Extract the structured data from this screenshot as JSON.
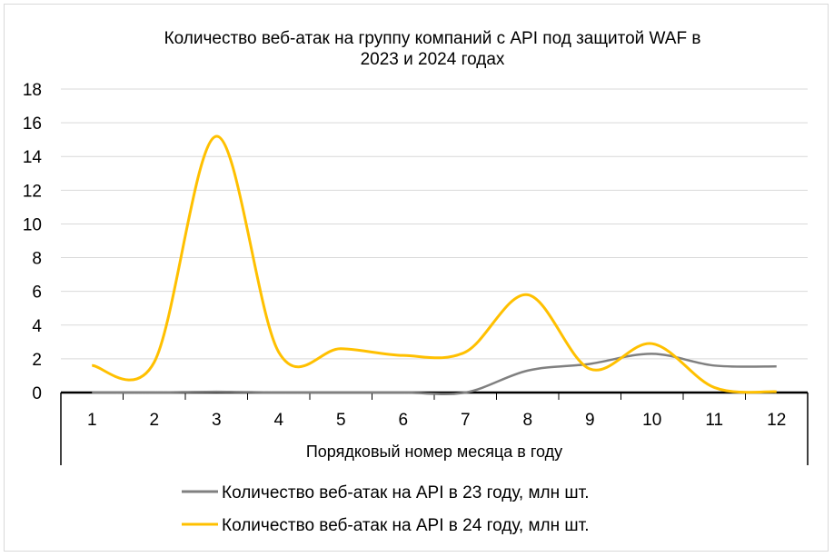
{
  "chart_data": {
    "type": "line",
    "title_line1": "Количество веб-атак на группу компаний с API под защитой WAF в",
    "title_line2": "2023 и 2024 годах",
    "xlabel": "Порядковый номер месяца в году",
    "ylabel": "",
    "categories": [
      "1",
      "2",
      "3",
      "4",
      "5",
      "6",
      "7",
      "8",
      "9",
      "10",
      "11",
      "12"
    ],
    "ylim": [
      0,
      18
    ],
    "yticks": [
      "0",
      "2",
      "4",
      "6",
      "8",
      "10",
      "12",
      "14",
      "16",
      "18"
    ],
    "grid": true,
    "legend_position": "bottom",
    "series": [
      {
        "name": "Количество веб-атак на API в 23 году, млн шт.",
        "color": "#808080",
        "values": [
          0,
          0,
          0.05,
          0,
          0,
          0,
          0,
          1.3,
          1.7,
          2.3,
          1.6,
          1.55
        ]
      },
      {
        "name": "Количество веб-атак на API в 24 году, млн шт.",
        "color": "#FFC000",
        "values": [
          1.6,
          1.8,
          15.2,
          2.4,
          2.6,
          2.2,
          2.4,
          5.8,
          1.4,
          2.9,
          0.3,
          0.05
        ]
      }
    ]
  }
}
